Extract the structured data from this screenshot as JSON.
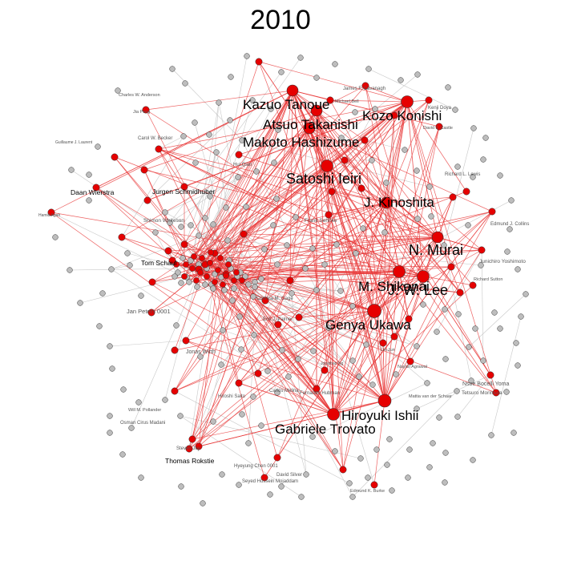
{
  "title": "2010",
  "colors": {
    "background": "#ffffff",
    "highlight_node": "#e60000",
    "other_node": "#bdbdbd",
    "highlight_edge": "#e83a3a",
    "other_edge": "#c8c8c8",
    "node_stroke": "#333333"
  },
  "big_labels": [
    "Kazuo Tanoue",
    "Atsuo Takanishi",
    "Kozo Konishi",
    "Makoto Hashizume",
    "Satoshi Ieiri",
    "J. Kinoshita",
    "N. Murai",
    "M. Shikanai",
    "J. W. Lee",
    "Genya Ukawa",
    "Hiroyuki Ishii",
    "Gabriele Trovato"
  ],
  "small_labels": [
    "Charles W. Anderson",
    "Jia Peng",
    "Guillaume J. Laurent",
    "Carol W. Becker",
    "Daan Wierstra",
    "Jurgen Schmidhuber",
    "Hamid Agah",
    "Shimon Whiteson",
    "Tom Schaul",
    "Jan Peters 0001",
    "Frank Sehnke",
    "Hui Qian",
    "Corinna M. Gage",
    "Erik J. Palmer",
    "Jonas Wirth",
    "Jonathan Ng",
    "Carlos Melina",
    "Fernando Hubman",
    "Hiroshi Saito",
    "Will M. Pollander",
    "Osman Cirus Madani",
    "Thomas Rokstie",
    "Steven Jay",
    "Hyeyung Chen 0001",
    "Seyed Hossein Mojaddam",
    "David Silver",
    "Edmund K. Burke",
    "Nsoe Bocelli Yoma",
    "Tetsuro Morimura",
    "Junichiro Yoshimoto",
    "Edmund J. Collins",
    "David J. Castle",
    "Richard L. Lewis",
    "Kenji Doya",
    "James F. Cavanagh",
    "Michael Bell",
    "Mattia van der Schaar",
    "Lin Jun",
    "Nayan Agrawal",
    "Richard Sutton"
  ],
  "graph": {
    "nodes": [
      {
        "label": "Kazuo Tanoue",
        "size": "big",
        "group": "highlight"
      },
      {
        "label": "Atsuo Takanishi",
        "size": "big",
        "group": "highlight"
      },
      {
        "label": "Kozo Konishi",
        "size": "big",
        "group": "highlight"
      },
      {
        "label": "Makoto Hashizume",
        "size": "big",
        "group": "highlight"
      },
      {
        "label": "Satoshi Ieiri",
        "size": "big",
        "group": "highlight"
      },
      {
        "label": "J. Kinoshita",
        "size": "big",
        "group": "highlight"
      },
      {
        "label": "N. Murai",
        "size": "big",
        "group": "highlight"
      },
      {
        "label": "M. Shikanai",
        "size": "big",
        "group": "highlight"
      },
      {
        "label": "J. W. Lee",
        "size": "big",
        "group": "highlight"
      },
      {
        "label": "Genya Ukawa",
        "size": "big",
        "group": "highlight"
      },
      {
        "label": "Hiroyuki Ishii",
        "size": "big",
        "group": "highlight"
      },
      {
        "label": "Gabriele Trovato",
        "size": "big",
        "group": "highlight"
      }
    ]
  }
}
